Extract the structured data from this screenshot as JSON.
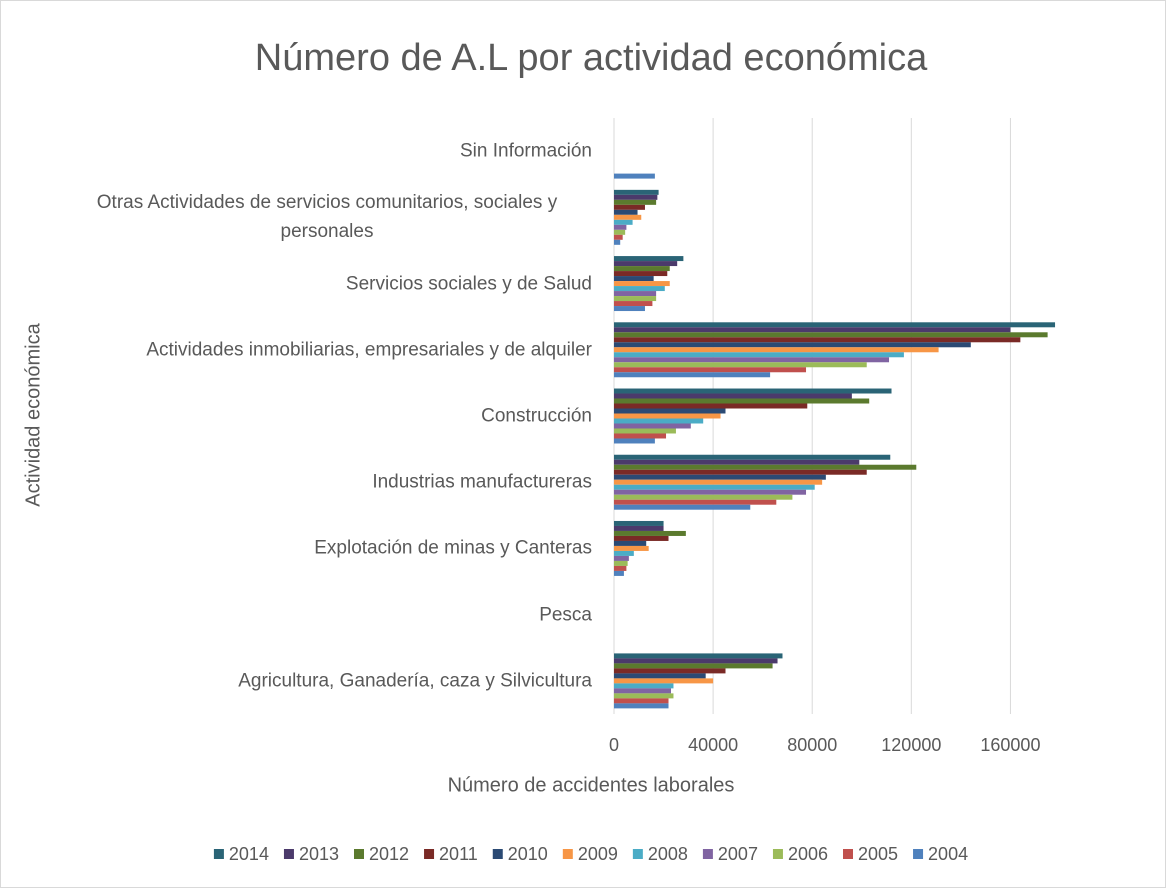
{
  "chart_data": {
    "type": "bar",
    "orientation": "horizontal",
    "title": "Número de A.L por actividad económica",
    "xlabel": "Número de accidentes laborales",
    "ylabel": "Actividad económica",
    "categories": [
      "Sin Información",
      "Otras Actividades de servicios comunitarios, sociales y personales",
      "Servicios sociales y de Salud",
      "Actividades inmobiliarias, empresariales y de alquiler",
      "Construcción",
      "Industrias manufactureras",
      "Explotación de minas y Canteras",
      "Pesca",
      "Agricultura, Ganadería, caza y Silvicultura"
    ],
    "series": [
      {
        "name": "2014",
        "color": "#2a6476",
        "values": [
          null,
          18000,
          28000,
          178000,
          112000,
          111500,
          20000,
          null,
          68000
        ]
      },
      {
        "name": "2013",
        "color": "#4b3a6b",
        "values": [
          null,
          17500,
          25500,
          160000,
          96000,
          99000,
          20000,
          null,
          66000
        ]
      },
      {
        "name": "2012",
        "color": "#5b7a2e",
        "values": [
          null,
          17000,
          22500,
          175000,
          103000,
          122000,
          29000,
          null,
          64000
        ]
      },
      {
        "name": "2011",
        "color": "#7a2a26",
        "values": [
          null,
          12500,
          21500,
          164000,
          78000,
          102000,
          22000,
          null,
          45000
        ]
      },
      {
        "name": "2010",
        "color": "#2b4a74",
        "values": [
          null,
          9500,
          16000,
          144000,
          45000,
          85500,
          13000,
          null,
          37000
        ]
      },
      {
        "name": "2009",
        "color": "#f79646",
        "values": [
          null,
          11000,
          22500,
          131000,
          43000,
          84000,
          14000,
          null,
          40000
        ]
      },
      {
        "name": "2008",
        "color": "#4bacc6",
        "values": [
          null,
          7500,
          20500,
          117000,
          36000,
          81000,
          8000,
          null,
          24000
        ]
      },
      {
        "name": "2007",
        "color": "#8064a2",
        "values": [
          null,
          5000,
          17000,
          111000,
          31000,
          77500,
          6000,
          null,
          23000
        ]
      },
      {
        "name": "2006",
        "color": "#9bbb59",
        "values": [
          null,
          4500,
          17000,
          102000,
          25000,
          72000,
          5500,
          null,
          24000
        ]
      },
      {
        "name": "2005",
        "color": "#c0504d",
        "values": [
          null,
          3500,
          15500,
          77500,
          21000,
          65500,
          5000,
          null,
          22000
        ]
      },
      {
        "name": "2004",
        "color": "#4f81bd",
        "values": [
          16500,
          2500,
          12500,
          63000,
          16500,
          55000,
          4000,
          null,
          22000
        ]
      }
    ],
    "xlim": [
      0,
      180000
    ],
    "xticks": [
      0,
      40000,
      80000,
      120000,
      160000
    ],
    "grid": true,
    "legend": "bottom"
  }
}
